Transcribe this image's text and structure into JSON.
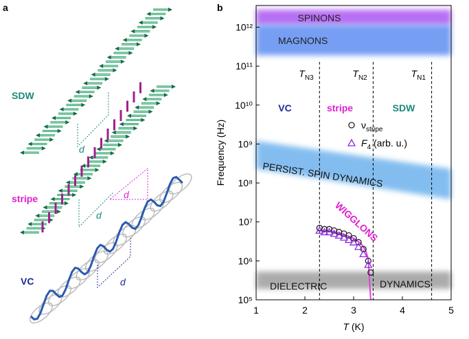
{
  "panel_a": {
    "letter": "a",
    "labels": [
      {
        "text": "SDW",
        "color": "#1a8a7a"
      },
      {
        "text": "stripe",
        "color": "#e020d0"
      },
      {
        "text": "VC",
        "color": "#1a2a9a"
      }
    ],
    "d_labels": [
      {
        "text": "d",
        "color": "#1a8a7a"
      },
      {
        "text": "d",
        "color": "#e020d0"
      },
      {
        "text": "d",
        "color": "#1a8a7a"
      },
      {
        "text": "d",
        "color": "#1a2a9a"
      }
    ]
  },
  "chart_data": {
    "type": "scatter",
    "letter": "b",
    "xlabel": {
      "var": "T",
      "unit": " (K)"
    },
    "ylabel": "Frequency (Hz)",
    "xlim": [
      1,
      5
    ],
    "xticks": [
      1,
      2,
      3,
      4,
      5
    ],
    "ylim": [
      100000,
      3600000000000
    ],
    "log_y": true,
    "yticks": [
      {
        "value": 100000,
        "label": "10⁵"
      },
      {
        "value": 1000000,
        "label": "10⁶"
      },
      {
        "value": 10000000,
        "label": "10⁷"
      },
      {
        "value": 100000000,
        "label": "10⁸"
      },
      {
        "value": 1000000000,
        "label": "10⁹"
      },
      {
        "value": 10000000000,
        "label": "10¹⁰"
      },
      {
        "value": 100000000000,
        "label": "10¹¹"
      },
      {
        "value": 1000000000000,
        "label": "10¹²"
      }
    ],
    "bands": [
      {
        "label": "SPINONS",
        "color": "#a040f0",
        "range": [
          1150000000000,
          2800000000000
        ]
      },
      {
        "label": "MAGNONS",
        "color": "#4a7ef0",
        "range": [
          190000000000,
          1150000000000
        ]
      },
      {
        "label": "PERSIST. SPIN DYNAMICS",
        "color": "#5aa8ea",
        "range": [
          230000000,
          1200000000
        ],
        "range_end": [
          38000000,
          230000000
        ]
      },
      {
        "label": "DIELECTRIC",
        "label2": "DYNAMICS",
        "color": "#909090",
        "range": [
          190000,
          530000
        ]
      }
    ],
    "transitions": [
      {
        "var": "T",
        "sub": "N3",
        "value": 2.3
      },
      {
        "var": "T",
        "sub": "N2",
        "value": 3.4
      },
      {
        "var": "T",
        "sub": "N1",
        "value": 4.6
      }
    ],
    "phases": [
      {
        "text": "VC",
        "color": "#1a2a9a"
      },
      {
        "text": "stripe",
        "color": "#e020d0"
      },
      {
        "text": "SDW",
        "color": "#1a8a7a"
      }
    ],
    "annotation": "WIGGLONS",
    "series": [
      {
        "name": "ν",
        "name_sub": "stripe",
        "marker": "circle",
        "color": "#222222",
        "x": [
          2.3,
          2.4,
          2.5,
          2.6,
          2.7,
          2.8,
          2.9,
          3.0,
          3.1,
          3.2,
          3.3,
          3.35
        ],
        "values": [
          7000000,
          6500000,
          6500000,
          6000000,
          5500000,
          5000000,
          4500000,
          3800000,
          3000000,
          2000000,
          1000000,
          500000
        ]
      },
      {
        "name": "F",
        "name_sub": "4",
        "name_suffix": " (arb. u.)",
        "marker": "triangle",
        "color": "#8a2be2",
        "x": [
          2.3,
          2.4,
          2.5,
          2.6,
          2.7,
          2.8,
          2.9,
          3.0,
          3.1,
          3.2,
          3.3
        ],
        "values": [
          6000000,
          5500000,
          5500000,
          5000000,
          4500000,
          4000000,
          3500000,
          3000000,
          2300000,
          1500000,
          800000
        ]
      }
    ],
    "fit": {
      "color": "#e040e0",
      "x": [
        2.25,
        2.5,
        2.75,
        3.0,
        3.15,
        3.25,
        3.3,
        3.35
      ],
      "values": [
        6000000,
        5800000,
        5000000,
        3800000,
        2800000,
        1800000,
        1100000,
        100000
      ]
    }
  }
}
